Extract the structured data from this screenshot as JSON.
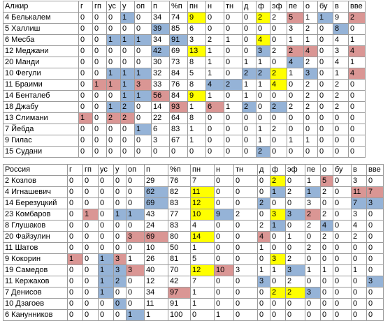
{
  "colors": {
    "blue": "#95b3d7",
    "yellow": "#ffff00",
    "pink": "#da9694",
    "grid": "#9a9a9a"
  },
  "algeria": {
    "columns": [
      "Алжир",
      "г",
      "гп",
      "ус",
      "у",
      "оп",
      "п",
      "%п",
      "пн",
      "н",
      "тн",
      "д",
      "ф",
      "эф",
      "пе",
      "о",
      "бу",
      "в",
      "вве"
    ],
    "rows": [
      {
        "cells": [
          "4 Белькалем",
          "0",
          "0",
          "0",
          "1",
          "0",
          "34",
          "74",
          "9",
          "0",
          "0",
          "0",
          "2",
          "2",
          "5",
          "1",
          "1",
          "9",
          "2"
        ],
        "hl": {
          "4": "bl",
          "8": "yl",
          "12": "yl",
          "14": "pk",
          "16": "bl",
          "18": "pk"
        }
      },
      {
        "cells": [
          "5 Халлиш",
          "0",
          "0",
          "0",
          "0",
          "0",
          "39",
          "85",
          "6",
          "0",
          "0",
          "0",
          "0",
          "0",
          "3",
          "2",
          "0",
          "8",
          "0"
        ],
        "hl": {
          "6": "bl",
          "17": "bl"
        }
      },
      {
        "cells": [
          "6 Месба",
          "0",
          "0",
          "1",
          "1",
          "1",
          "34",
          "91",
          "3",
          "2",
          "1",
          "0",
          "4",
          "0",
          "1",
          "1",
          "0",
          "4",
          "1"
        ],
        "hl": {
          "3": "bl",
          "4": "bl",
          "5": "bl",
          "7": "bl",
          "12": "yl"
        }
      },
      {
        "cells": [
          "12 Меджани",
          "0",
          "0",
          "0",
          "0",
          "0",
          "42",
          "69",
          "13",
          "1",
          "0",
          "0",
          "3",
          "2",
          "2",
          "4",
          "0",
          "3",
          "4"
        ],
        "hl": {
          "6": "bl",
          "8": "yl",
          "12": "bl",
          "14": "pk",
          "15": "pk",
          "18": "pk"
        }
      },
      {
        "cells": [
          "20 Манди",
          "0",
          "0",
          "0",
          "0",
          "0",
          "30",
          "73",
          "8",
          "1",
          "0",
          "1",
          "1",
          "0",
          "4",
          "2",
          "0",
          "4",
          "1"
        ],
        "hl": {
          "14": "bl"
        }
      },
      {
        "cells": [
          "10 Фегули",
          "0",
          "0",
          "1",
          "1",
          "1",
          "32",
          "84",
          "5",
          "1",
          "0",
          "2",
          "2",
          "2",
          "1",
          "3",
          "0",
          "1",
          "4"
        ],
        "hl": {
          "3": "bl",
          "4": "bl",
          "5": "bl",
          "11": "bl",
          "12": "bl",
          "13": "yl",
          "15": "bl",
          "18": "pk"
        }
      },
      {
        "cells": [
          "11 Браими",
          "0",
          "1",
          "1",
          "1",
          "3",
          "33",
          "76",
          "8",
          "4",
          "2",
          "1",
          "1",
          "4",
          "0",
          "2",
          "0",
          "2",
          "0"
        ],
        "hl": {
          "2": "pk",
          "3": "pk",
          "4": "bl",
          "5": "pk",
          "9": "bl",
          "10": "bl",
          "13": "yl"
        }
      },
      {
        "cells": [
          "14 Бенталеб",
          "0",
          "0",
          "0",
          "1",
          "1",
          "56",
          "84",
          "9",
          "1",
          "0",
          "1",
          "0",
          "0",
          "0",
          "2",
          "0",
          "2",
          "0"
        ],
        "hl": {
          "4": "bl",
          "5": "bl",
          "6": "pk",
          "8": "yl"
        }
      },
      {
        "cells": [
          "18 Джабу",
          "0",
          "0",
          "1",
          "2",
          "0",
          "14",
          "93",
          "1",
          "6",
          "1",
          "2",
          "0",
          "2",
          "2",
          "2",
          "0",
          "2",
          "0"
        ],
        "hl": {
          "3": "bl",
          "4": "bl",
          "7": "pk",
          "9": "pk",
          "11": "bl",
          "13": "bl"
        }
      },
      {
        "cells": [
          "13 Слимани",
          "1",
          "0",
          "2",
          "2",
          "0",
          "22",
          "64",
          "8",
          "0",
          "0",
          "0",
          "0",
          "0",
          "0",
          "0",
          "0",
          "0",
          "0"
        ],
        "hl": {
          "1": "pk",
          "3": "pk",
          "4": "pk"
        }
      },
      {
        "cells": [
          "7 Йебда",
          "0",
          "0",
          "0",
          "0",
          "1",
          "6",
          "83",
          "1",
          "0",
          "0",
          "0",
          "1",
          "2",
          "0",
          "0",
          "0",
          "0",
          "0"
        ],
        "hl": {
          "5": "bl"
        }
      },
      {
        "cells": [
          "9 Гилас",
          "0",
          "0",
          "0",
          "0",
          "0",
          "3",
          "67",
          "1",
          "0",
          "0",
          "0",
          "1",
          "0",
          "1",
          "1",
          "0",
          "0",
          "0"
        ],
        "hl": {}
      },
      {
        "cells": [
          "15 Судани",
          "0",
          "0",
          "0",
          "0",
          "0",
          "0",
          "0",
          "0",
          "0",
          "0",
          "0",
          "2",
          "0",
          "0",
          "0",
          "0",
          "0",
          "0"
        ],
        "hl": {
          "12": "bl"
        }
      }
    ]
  },
  "russia": {
    "columns": [
      "Россия",
      "г",
      "гп",
      "ус",
      "у",
      "оп",
      "п",
      "%п",
      "пн",
      "н",
      "тн",
      "д",
      "ф",
      "эф",
      "пе",
      "о",
      "бу",
      "в",
      "вве"
    ],
    "rows": [
      {
        "cells": [
          "2 Козлов",
          "0",
          "0",
          "0",
          "0",
          "0",
          "29",
          "76",
          "7",
          "0",
          "0",
          "0",
          "2",
          "0",
          "1",
          "5",
          "0",
          "3",
          "0"
        ],
        "hl": {
          "12": "yl",
          "15": "pk"
        }
      },
      {
        "cells": [
          "4 Игнашевич",
          "0",
          "0",
          "0",
          "0",
          "0",
          "62",
          "82",
          "11",
          "0",
          "0",
          "0",
          "1",
          "2",
          "1",
          "2",
          "0",
          "11",
          "7"
        ],
        "hl": {
          "6": "bl",
          "8": "yl",
          "12": "bl",
          "14": "bl",
          "17": "pk",
          "18": "pk"
        }
      },
      {
        "cells": [
          "14 Березуцкий",
          "0",
          "0",
          "0",
          "0",
          "0",
          "69",
          "83",
          "12",
          "0",
          "0",
          "2",
          "0",
          "0",
          "3",
          "0",
          "0",
          "7",
          "3"
        ],
        "hl": {
          "6": "bl",
          "8": "yl",
          "11": "bl",
          "17": "bl",
          "18": "bl"
        }
      },
      {
        "cells": [
          "23 Комбаров",
          "0",
          "1",
          "0",
          "1",
          "1",
          "43",
          "77",
          "10",
          "9",
          "2",
          "0",
          "3",
          "3",
          "2",
          "2",
          "0",
          "3",
          "0"
        ],
        "hl": {
          "2": "pk",
          "4": "bl",
          "5": "bl",
          "8": "yl",
          "9": "bl",
          "12": "yl",
          "13": "bl",
          "14": "pk"
        }
      },
      {
        "cells": [
          "8 Глушаков",
          "0",
          "0",
          "0",
          "0",
          "0",
          "24",
          "83",
          "4",
          "0",
          "0",
          "2",
          "1",
          "0",
          "2",
          "4",
          "0",
          "4",
          "0"
        ],
        "hl": {
          "12": "bl",
          "15": "bl"
        }
      },
      {
        "cells": [
          "20 Файзулин",
          "0",
          "0",
          "0",
          "0",
          "3",
          "69",
          "80",
          "14",
          "0",
          "0",
          "4",
          "0",
          "1",
          "0",
          "2",
          "0",
          "2",
          "0"
        ],
        "hl": {
          "5": "pk",
          "6": "pk",
          "8": "yl",
          "11": "pk"
        }
      },
      {
        "cells": [
          "11 Шатов",
          "0",
          "0",
          "0",
          "0",
          "0",
          "10",
          "50",
          "1",
          "0",
          "0",
          "1",
          "0",
          "0",
          "2",
          "0",
          "0",
          "0",
          "0"
        ],
        "hl": {}
      },
      {
        "cells": [
          "9 Кокорин",
          "1",
          "0",
          "1",
          "3",
          "1",
          "26",
          "81",
          "5",
          "0",
          "0",
          "0",
          "3",
          "2",
          "0",
          "0",
          "0",
          "0",
          "0"
        ],
        "hl": {
          "1": "pk",
          "3": "bl",
          "4": "pk",
          "12": "yl"
        }
      },
      {
        "cells": [
          "19 Самедов",
          "0",
          "0",
          "1",
          "3",
          "3",
          "40",
          "70",
          "12",
          "10",
          "3",
          "1",
          "1",
          "3",
          "1",
          "1",
          "0",
          "1",
          "0"
        ],
        "hl": {
          "3": "bl",
          "4": "bl",
          "5": "pk",
          "8": "yl",
          "9": "pk",
          "13": "bl"
        }
      },
      {
        "cells": [
          "11 Кержаков",
          "0",
          "0",
          "1",
          "2",
          "0",
          "12",
          "42",
          "7",
          "0",
          "0",
          "3",
          "0",
          "2",
          "0",
          "0",
          "0",
          "0",
          "3"
        ],
        "hl": {
          "3": "bl",
          "4": "bl",
          "11": "bl",
          "18": "bl"
        }
      },
      {
        "cells": [
          "7 Денисов",
          "0",
          "0",
          "1",
          "0",
          "0",
          "34",
          "97",
          "1",
          "0",
          "0",
          "0",
          "2",
          "2",
          "3",
          "0",
          "0",
          "0",
          "0"
        ],
        "hl": {
          "3": "bl",
          "7": "pk",
          "12": "yl",
          "13": "yl",
          "14": "bl"
        }
      },
      {
        "cells": [
          "10 Дзагоев",
          "0",
          "0",
          "0",
          "0",
          "0",
          "11",
          "91",
          "1",
          "0",
          "0",
          "0",
          "0",
          "0",
          "0",
          "0",
          "0",
          "0",
          "0"
        ],
        "hl": {
          "4": "bl"
        }
      },
      {
        "cells": [
          "6 Канунников",
          "0",
          "0",
          "0",
          "0",
          "1",
          "1",
          "100",
          "0",
          "1",
          "0",
          "0",
          "0",
          "0",
          "0",
          "0",
          "0",
          "0",
          "0"
        ],
        "hl": {
          "5": "bl"
        }
      }
    ]
  }
}
